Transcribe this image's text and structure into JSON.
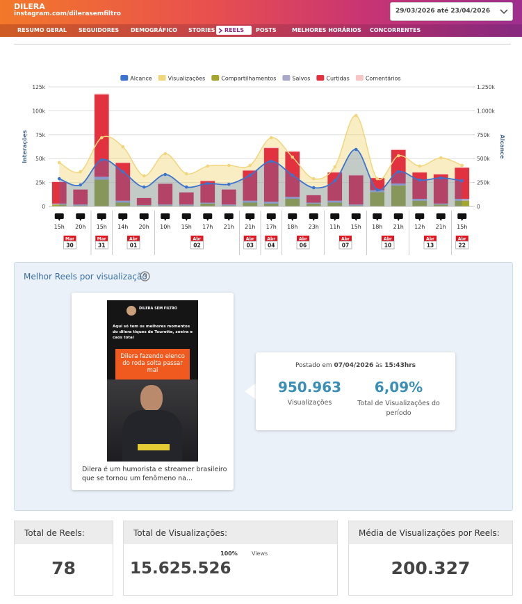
{
  "header": {
    "title": "DILERA",
    "subtitle": "instagram.com/dilerasemfiltro",
    "date_range": "29/03/2026 até 23/04/2026"
  },
  "nav": {
    "tabs": [
      "RESUMO GERAL",
      "SEGUIDORES",
      "DEMOGRÁFICO",
      "STORIES",
      "REELS",
      "POSTS",
      "MELHORES HORÁRIOS",
      "CONCORRENTES"
    ],
    "active": 4
  },
  "chart_data": {
    "type": "bar",
    "ylabel": "Interações",
    "y2label": "Alcance",
    "categories": [
      "15h",
      "20h",
      "15h",
      "14h",
      "20h",
      "10h",
      "15h",
      "17h",
      "21h",
      "21h",
      "17h",
      "18h",
      "23h",
      "11h",
      "15h",
      "18h",
      "21h",
      "12h",
      "21h",
      "15h"
    ],
    "date_groups": [
      {
        "month": "Mar",
        "day": "30"
      },
      {
        "month": "Mar",
        "day": "31"
      },
      {
        "month": "Abr",
        "day": "01"
      },
      {
        "month": "Abr",
        "day": "02"
      },
      {
        "month": "Abr",
        "day": "03"
      },
      {
        "month": "Abr",
        "day": "04"
      },
      {
        "month": "Abr",
        "day": "06"
      },
      {
        "month": "Abr",
        "day": "07"
      },
      {
        "month": "Abr",
        "day": "10"
      },
      {
        "month": "Abr",
        "day": "13"
      },
      {
        "month": "Abr",
        "day": "22"
      }
    ],
    "series": [
      {
        "name": "Alcance",
        "type": "area",
        "axis": "y2",
        "color": "#3b74cf",
        "values": [
          290000,
          225000,
          487000,
          363000,
          203000,
          334000,
          203000,
          240000,
          232000,
          327000,
          472000,
          327000,
          196000,
          269000,
          596000,
          174000,
          363000,
          276000,
          298000,
          269000
        ]
      },
      {
        "name": "Visualizações",
        "type": "area",
        "axis": "y2",
        "color": "#f2d67c",
        "values": [
          458000,
          363000,
          719000,
          625000,
          320000,
          552000,
          342000,
          422000,
          429000,
          429000,
          719000,
          516000,
          290000,
          414000,
          950963,
          290000,
          530000,
          422000,
          508000,
          429000
        ]
      },
      {
        "name": "Compartilhamentos",
        "type": "bar",
        "color": "#a5a62e",
        "values": [
          2000,
          1000,
          28000,
          4000,
          1000,
          1000,
          1000,
          3000,
          1000,
          4000,
          3000,
          8000,
          3000,
          4000,
          1000,
          15000,
          22000,
          6000,
          2000,
          6000
        ]
      },
      {
        "name": "Salvos",
        "type": "bar",
        "color": "#aaa8c8",
        "values": [
          1000,
          1000,
          3000,
          2000,
          500,
          1000,
          1000,
          1000,
          1000,
          2000,
          2000,
          2000,
          1000,
          2000,
          1000,
          2000,
          2000,
          2000,
          1000,
          2000
        ]
      },
      {
        "name": "Curtidas",
        "type": "bar",
        "color": "#e2323f",
        "values": [
          22500,
          15700,
          86000,
          39500,
          7300,
          21700,
          12700,
          22500,
          15700,
          31500,
          56000,
          47200,
          7800,
          29500,
          30500,
          12700,
          35000,
          27500,
          30500,
          32500
        ]
      },
      {
        "name": "Comentários",
        "type": "bar",
        "color": "#f8c4c4",
        "values": [
          500,
          300,
          1000,
          500,
          200,
          300,
          300,
          500,
          300,
          500,
          1000,
          800,
          200,
          500,
          500,
          300,
          1000,
          500,
          500,
          500
        ]
      }
    ],
    "ylim": [
      0,
      125000
    ],
    "yticks": [
      0,
      {
        "value": 25000,
        "label": "25k"
      },
      {
        "value": 50000,
        "label": "50k"
      },
      {
        "value": 75000,
        "label": "75k"
      },
      {
        "value": 100000,
        "label": "100k"
      },
      {
        "value": 125000,
        "label": "125k"
      }
    ],
    "y2lim": [
      0,
      1250000
    ],
    "y2ticks": [
      0,
      {
        "value": 250000,
        "label": "250k"
      },
      {
        "value": 500000,
        "label": "500k"
      },
      {
        "value": 750000,
        "label": "750k"
      },
      {
        "value": 1000000,
        "label": "1.000k"
      },
      {
        "value": 1250000,
        "label": "1.250k"
      }
    ],
    "grid": true,
    "legend": "top"
  },
  "best_reel": {
    "title": "Melhor Reels por visualização",
    "account": "DILERA SEM FILTRO",
    "caption": "Aqui só tem os melhores momentos do dilera tiques de Tourette, zoeira e caos total",
    "overlay": "Dilera fazendo elenco do roda solta passar mal",
    "description": "Dilera é um humorista e streamer brasileiro que se tornou um fenômeno na...",
    "posted_prefix": "Postado em",
    "posted_date": "07/04/2026",
    "posted_at": "às",
    "posted_time": "15:43hrs",
    "views": "950.963",
    "views_label": "Visualizações",
    "share": "6,09%",
    "share_label": "Total de Visualizações do período"
  },
  "summary": {
    "cards": [
      {
        "label": "Total de Reels:",
        "value": "78"
      },
      {
        "label": "Total de Visualizações:",
        "value": "15.625.526",
        "percent": "100%",
        "unit": "Views"
      },
      {
        "label": "Média de Visualizações por Reels:",
        "value": "200.327"
      }
    ]
  }
}
